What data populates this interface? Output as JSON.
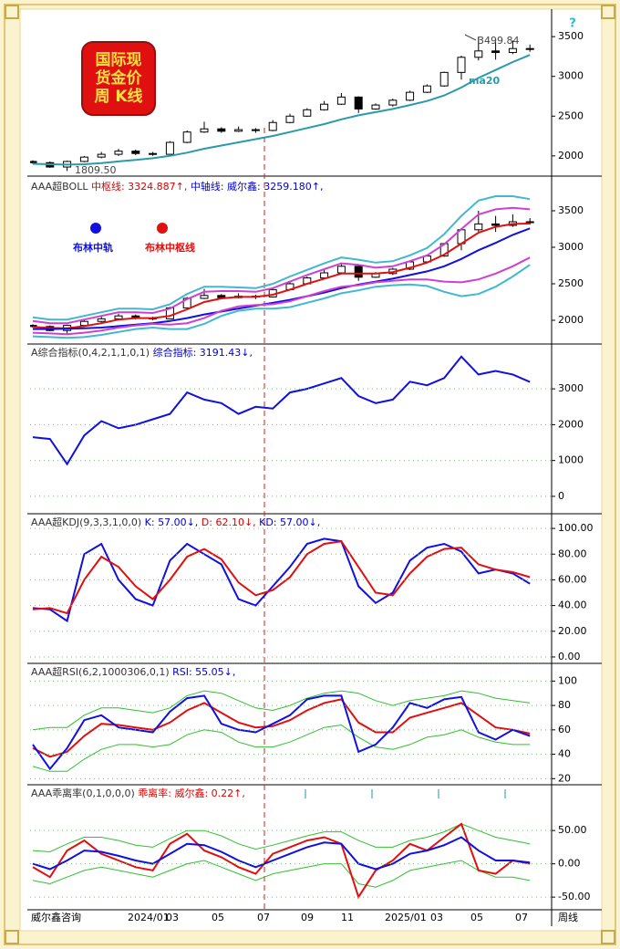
{
  "toolbar": "?",
  "logo": [
    "国际现",
    "货金价",
    "周 K线"
  ],
  "axis": {
    "left_label": "威尔鑫咨询",
    "labels": [
      "2024/01",
      "03",
      "05",
      "07",
      "09",
      "11",
      "2025/01",
      "03",
      "05",
      "07"
    ],
    "right_label": "周线"
  },
  "chart_data": [
    {
      "type": "candlestick",
      "ylim": [
        1780,
        3800
      ],
      "yticks": [
        2000,
        2500,
        3000,
        3500
      ],
      "grid": false,
      "open": [
        1930,
        1915,
        1860,
        1930,
        1985,
        2020,
        2060,
        2030,
        2020,
        2170,
        2300,
        2340,
        2310,
        2330,
        2320,
        2420,
        2500,
        2580,
        2650,
        2740,
        2590,
        2640,
        2700,
        2800,
        2880,
        3050,
        3240,
        3320,
        3300,
        3350
      ],
      "high": [
        1945,
        1930,
        1940,
        2000,
        2050,
        2090,
        2080,
        2050,
        2185,
        2320,
        2430,
        2360,
        2370,
        2350,
        2450,
        2530,
        2600,
        2690,
        2790,
        2750,
        2660,
        2720,
        2820,
        2900,
        3060,
        3260,
        3499.84,
        3430,
        3450,
        3400
      ],
      "low": [
        1900,
        1850,
        1809.5,
        1920,
        1970,
        2000,
        2010,
        2000,
        2020,
        2160,
        2290,
        2290,
        2300,
        2290,
        2310,
        2410,
        2490,
        2570,
        2640,
        2540,
        2580,
        2620,
        2690,
        2790,
        2870,
        2960,
        3200,
        3210,
        3280,
        3310
      ],
      "close": [
        1915,
        1860,
        1930,
        1985,
        2020,
        2060,
        2030,
        2020,
        2170,
        2300,
        2340,
        2310,
        2330,
        2320,
        2420,
        2500,
        2580,
        2650,
        2740,
        2590,
        2640,
        2700,
        2800,
        2880,
        3050,
        3240,
        3320,
        3300,
        3350,
        3340
      ],
      "series": [
        {
          "color": "#2a9aa8",
          "values": [
            1900,
            1895,
            1890,
            1895,
            1910,
            1930,
            1950,
            1970,
            2000,
            2040,
            2090,
            2130,
            2170,
            2210,
            2250,
            2300,
            2350,
            2400,
            2460,
            2510,
            2550,
            2590,
            2640,
            2690,
            2760,
            2860,
            2980,
            3080,
            3180,
            3270
          ]
        }
      ],
      "annotations": [
        {
          "text": "3499.84",
          "color": "#444444"
        },
        {
          "text": "1809.50",
          "color": "#444444"
        },
        {
          "text": "ma20",
          "color": "#2a9aa8"
        }
      ]
    },
    {
      "type": "candlestick",
      "ylim": [
        1700,
        3925
      ],
      "yticks": [
        2000,
        2500,
        3000,
        3500
      ],
      "grid": false,
      "header": [
        {
          "text": "AAA超BOLL ",
          "color": "#333333"
        },
        {
          "text": "中枢线: 3324.887↑,",
          "color": "#e00000"
        },
        {
          "text": " 中轴线: 威尔鑫: 3259.180↑,",
          "color": "#0000d0"
        }
      ],
      "legend": [
        {
          "text": "布林中轨",
          "color": "#1010e0"
        },
        {
          "text": "布林中枢线",
          "color": "#e01010"
        }
      ],
      "series": [
        {
          "color": "#40b8d0",
          "values": [
            2040,
            2010,
            2010,
            2060,
            2110,
            2160,
            2160,
            2150,
            2220,
            2360,
            2460,
            2460,
            2450,
            2440,
            2500,
            2600,
            2690,
            2780,
            2860,
            2830,
            2790,
            2810,
            2890,
            2990,
            3180,
            3430,
            3640,
            3700,
            3700,
            3660
          ]
        },
        {
          "color": "#d040d0",
          "values": [
            1990,
            1960,
            1960,
            2010,
            2060,
            2110,
            2110,
            2100,
            2160,
            2290,
            2390,
            2400,
            2400,
            2390,
            2440,
            2530,
            2620,
            2700,
            2780,
            2760,
            2720,
            2740,
            2810,
            2890,
            3040,
            3250,
            3450,
            3520,
            3540,
            3520
          ]
        },
        {
          "color": "#e01010",
          "values": [
            1910,
            1895,
            1890,
            1920,
            1960,
            2010,
            2030,
            2030,
            2060,
            2150,
            2250,
            2300,
            2320,
            2320,
            2350,
            2420,
            2500,
            2570,
            2640,
            2640,
            2640,
            2660,
            2720,
            2790,
            2900,
            3050,
            3200,
            3280,
            3320,
            3324.887
          ]
        },
        {
          "color": "#1010e0",
          "values": [
            1880,
            1880,
            1885,
            1890,
            1900,
            1920,
            1940,
            1960,
            1990,
            2030,
            2080,
            2120,
            2160,
            2200,
            2240,
            2280,
            2330,
            2380,
            2440,
            2490,
            2530,
            2570,
            2620,
            2670,
            2740,
            2840,
            2960,
            3060,
            3170,
            3259.18
          ]
        },
        {
          "color": "#d040d0",
          "values": [
            1830,
            1820,
            1810,
            1830,
            1860,
            1900,
            1930,
            1950,
            1940,
            1960,
            2030,
            2130,
            2190,
            2210,
            2220,
            2260,
            2330,
            2400,
            2460,
            2480,
            2520,
            2540,
            2560,
            2560,
            2530,
            2520,
            2560,
            2640,
            2740,
            2860
          ]
        },
        {
          "color": "#40b8d0",
          "values": [
            1780,
            1770,
            1760,
            1770,
            1800,
            1840,
            1880,
            1900,
            1880,
            1880,
            1950,
            2060,
            2130,
            2160,
            2160,
            2180,
            2240,
            2300,
            2370,
            2410,
            2460,
            2480,
            2490,
            2470,
            2390,
            2330,
            2360,
            2460,
            2600,
            2760
          ]
        }
      ]
    },
    {
      "type": "line",
      "ylim": [
        -460,
        4200
      ],
      "yticks": [
        0,
        1000,
        2000,
        3000
      ],
      "grid": true,
      "header": [
        {
          "text": "A综合指标(0,4,2,1,1,0,1) ",
          "color": "#333333"
        },
        {
          "text": "综合指标: 3191.43↓,",
          "color": "#0000d0"
        }
      ],
      "series": [
        {
          "color": "#1010e0",
          "values": [
            1650,
            1600,
            900,
            1700,
            2100,
            1900,
            2000,
            2150,
            2300,
            2900,
            2700,
            2600,
            2300,
            2500,
            2450,
            2900,
            3000,
            3150,
            3300,
            2800,
            2600,
            2700,
            3200,
            3100,
            3300,
            3900,
            3400,
            3500,
            3400,
            3191.43
          ]
        }
      ]
    },
    {
      "type": "line",
      "ylim": [
        -5,
        110
      ],
      "yticks": [
        {
          "value": 0,
          "label": "0.00"
        },
        {
          "value": 20,
          "label": "20.00"
        },
        {
          "value": 40,
          "label": "40.00"
        },
        {
          "value": 60,
          "label": "60.00"
        },
        {
          "value": 80,
          "label": "80.00"
        },
        {
          "value": 100,
          "label": "100.00"
        }
      ],
      "grid": true,
      "header": [
        {
          "text": "AAA超KDJ(9,3,3,1,0,0) ",
          "color": "#333333"
        },
        {
          "text": "K: 57.00↓,",
          "color": "#0000d0"
        },
        {
          "text": " D: 62.10↓,",
          "color": "#e00000"
        },
        {
          "text": " KD: 57.00↓,",
          "color": "#0000d0"
        }
      ],
      "series": [
        {
          "color": "#1010e0",
          "values": [
            38,
            37,
            28,
            80,
            88,
            60,
            45,
            40,
            75,
            88,
            80,
            72,
            45,
            40,
            55,
            70,
            88,
            92,
            90,
            55,
            42,
            50,
            75,
            85,
            88,
            82,
            65,
            68,
            65,
            57
          ]
        },
        {
          "color": "#e01010",
          "values": [
            37,
            38,
            34,
            60,
            78,
            70,
            55,
            45,
            60,
            78,
            84,
            76,
            58,
            48,
            52,
            62,
            80,
            88,
            90,
            70,
            50,
            48,
            65,
            78,
            84,
            85,
            72,
            68,
            66,
            62.1
          ]
        }
      ]
    },
    {
      "type": "line",
      "ylim": [
        15,
        113
      ],
      "yticks": [
        20,
        40,
        60,
        80,
        100
      ],
      "grid": true,
      "header": [
        {
          "text": "AAA超RSI(6,2,1000306,0,1) ",
          "color": "#333333"
        },
        {
          "text": "RSI: 55.05↓,",
          "color": "#0000d0"
        }
      ],
      "series": [
        {
          "color": "#30c030",
          "values": [
            60,
            62,
            62,
            72,
            78,
            78,
            76,
            74,
            78,
            88,
            92,
            90,
            84,
            78,
            76,
            80,
            86,
            90,
            92,
            90,
            84,
            80,
            84,
            86,
            88,
            92,
            90,
            86,
            84,
            82
          ]
        },
        {
          "color": "#30c030",
          "values": [
            30,
            26,
            26,
            36,
            44,
            48,
            48,
            46,
            48,
            56,
            60,
            58,
            50,
            46,
            46,
            50,
            56,
            62,
            64,
            54,
            46,
            44,
            48,
            54,
            56,
            60,
            54,
            50,
            48,
            48
          ]
        },
        {
          "color": "#e01010",
          "values": [
            45,
            38,
            42,
            55,
            65,
            64,
            62,
            60,
            66,
            76,
            82,
            74,
            66,
            62,
            63,
            68,
            76,
            82,
            85,
            66,
            58,
            58,
            70,
            74,
            78,
            82,
            72,
            62,
            60,
            57
          ]
        },
        {
          "color": "#1010e0",
          "values": [
            48,
            28,
            45,
            68,
            72,
            62,
            60,
            58,
            75,
            86,
            88,
            65,
            60,
            58,
            65,
            72,
            85,
            88,
            88,
            42,
            48,
            62,
            82,
            78,
            85,
            87,
            58,
            52,
            60,
            55.05
          ]
        }
      ]
    },
    {
      "type": "line",
      "ylim": [
        -69,
        116
      ],
      "yticks": [
        {
          "value": -50,
          "label": "-50.00"
        },
        {
          "value": 0,
          "label": "0.00"
        },
        {
          "value": 50,
          "label": "50.00"
        }
      ],
      "grid": true,
      "header": [
        {
          "text": "AAA乖离率(0,1,0,0,0) ",
          "color": "#333333"
        },
        {
          "text": "乖离率: 威尔鑫: 0.22↑,",
          "color": "#e00000"
        }
      ],
      "series": [
        {
          "color": "#30c030",
          "values": [
            20,
            18,
            30,
            40,
            40,
            35,
            28,
            25,
            38,
            50,
            50,
            42,
            30,
            22,
            28,
            35,
            42,
            48,
            48,
            35,
            25,
            25,
            35,
            40,
            48,
            60,
            50,
            40,
            35,
            30
          ]
        },
        {
          "color": "#30c030",
          "values": [
            -25,
            -30,
            -20,
            -10,
            -5,
            -10,
            -15,
            -20,
            -10,
            0,
            5,
            -5,
            -15,
            -25,
            -15,
            -10,
            -5,
            0,
            0,
            -30,
            -35,
            -25,
            -10,
            -5,
            0,
            5,
            -10,
            -20,
            -20,
            -25
          ]
        },
        {
          "color": "#e01010",
          "values": [
            -5,
            -20,
            20,
            35,
            15,
            5,
            -5,
            -10,
            30,
            45,
            20,
            10,
            -5,
            -15,
            15,
            25,
            35,
            40,
            30,
            -50,
            -10,
            5,
            30,
            20,
            40,
            60,
            -10,
            -15,
            5,
            0.22
          ]
        },
        {
          "color": "#1010e0",
          "values": [
            0,
            -8,
            5,
            20,
            18,
            12,
            5,
            0,
            15,
            30,
            28,
            18,
            5,
            -5,
            5,
            15,
            25,
            32,
            30,
            0,
            -8,
            0,
            15,
            20,
            28,
            40,
            20,
            5,
            5,
            2
          ]
        }
      ]
    }
  ]
}
